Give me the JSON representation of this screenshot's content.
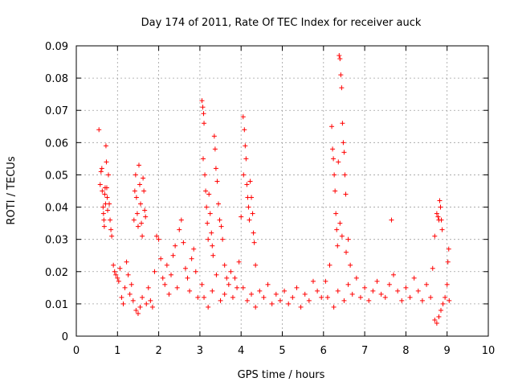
{
  "chart_data": {
    "type": "scatter",
    "title": "Day 174 of 2011, Rate Of TEC Index for receiver auck",
    "xlabel": "GPS time / hours",
    "ylabel": "ROTI / TECUs",
    "xlim": [
      0,
      10
    ],
    "ylim": [
      0,
      0.09
    ],
    "xticks": [
      "0",
      "1",
      "2",
      "3",
      "4",
      "5",
      "6",
      "7",
      "8",
      "9",
      "10"
    ],
    "yticks": [
      "0",
      "0.01",
      "0.02",
      "0.03",
      "0.04",
      "0.05",
      "0.06",
      "0.07",
      "0.08",
      "0.09"
    ],
    "grid": true,
    "marker": "+",
    "color": "#ff0000",
    "series": [
      {
        "name": "ROTI",
        "points": [
          [
            0.55,
            0.064
          ],
          [
            0.58,
            0.047
          ],
          [
            0.6,
            0.051
          ],
          [
            0.62,
            0.052
          ],
          [
            0.63,
            0.045
          ],
          [
            0.65,
            0.04
          ],
          [
            0.66,
            0.038
          ],
          [
            0.67,
            0.036
          ],
          [
            0.68,
            0.034
          ],
          [
            0.69,
            0.044
          ],
          [
            0.7,
            0.046
          ],
          [
            0.71,
            0.041
          ],
          [
            0.72,
            0.059
          ],
          [
            0.73,
            0.054
          ],
          [
            0.74,
            0.046
          ],
          [
            0.75,
            0.043
          ],
          [
            0.76,
            0.039
          ],
          [
            0.78,
            0.05
          ],
          [
            0.8,
            0.041
          ],
          [
            0.82,
            0.036
          ],
          [
            0.84,
            0.033
          ],
          [
            0.86,
            0.031
          ],
          [
            0.9,
            0.022
          ],
          [
            0.93,
            0.02
          ],
          [
            0.96,
            0.019
          ],
          [
            1.0,
            0.018
          ],
          [
            1.03,
            0.017
          ],
          [
            1.06,
            0.021
          ],
          [
            1.1,
            0.012
          ],
          [
            1.14,
            0.01
          ],
          [
            1.18,
            0.015
          ],
          [
            1.22,
            0.023
          ],
          [
            1.26,
            0.019
          ],
          [
            1.3,
            0.013
          ],
          [
            1.34,
            0.016
          ],
          [
            1.38,
            0.011
          ],
          [
            1.4,
            0.036
          ],
          [
            1.42,
            0.045
          ],
          [
            1.44,
            0.05
          ],
          [
            1.46,
            0.043
          ],
          [
            1.48,
            0.038
          ],
          [
            1.5,
            0.034
          ],
          [
            1.52,
            0.053
          ],
          [
            1.54,
            0.047
          ],
          [
            1.56,
            0.041
          ],
          [
            1.58,
            0.035
          ],
          [
            1.6,
            0.031
          ],
          [
            1.62,
            0.049
          ],
          [
            1.64,
            0.045
          ],
          [
            1.66,
            0.039
          ],
          [
            1.68,
            0.037
          ],
          [
            1.45,
            0.008
          ],
          [
            1.5,
            0.007
          ],
          [
            1.55,
            0.009
          ],
          [
            1.6,
            0.012
          ],
          [
            1.7,
            0.01
          ],
          [
            1.75,
            0.015
          ],
          [
            1.8,
            0.011
          ],
          [
            1.85,
            0.009
          ],
          [
            1.9,
            0.02
          ],
          [
            1.95,
            0.031
          ],
          [
            2.0,
            0.03
          ],
          [
            2.05,
            0.024
          ],
          [
            2.1,
            0.018
          ],
          [
            2.15,
            0.016
          ],
          [
            2.2,
            0.022
          ],
          [
            2.25,
            0.013
          ],
          [
            2.3,
            0.019
          ],
          [
            2.35,
            0.025
          ],
          [
            2.4,
            0.028
          ],
          [
            2.45,
            0.015
          ],
          [
            2.5,
            0.033
          ],
          [
            2.55,
            0.036
          ],
          [
            2.6,
            0.029
          ],
          [
            2.65,
            0.021
          ],
          [
            2.7,
            0.018
          ],
          [
            2.75,
            0.014
          ],
          [
            2.8,
            0.024
          ],
          [
            2.85,
            0.027
          ],
          [
            2.9,
            0.02
          ],
          [
            2.95,
            0.012
          ],
          [
            3.05,
            0.073
          ],
          [
            3.07,
            0.071
          ],
          [
            3.09,
            0.069
          ],
          [
            3.1,
            0.066
          ],
          [
            3.08,
            0.055
          ],
          [
            3.12,
            0.05
          ],
          [
            3.14,
            0.045
          ],
          [
            3.16,
            0.04
          ],
          [
            3.18,
            0.035
          ],
          [
            3.2,
            0.03
          ],
          [
            3.22,
            0.044
          ],
          [
            3.25,
            0.038
          ],
          [
            3.28,
            0.032
          ],
          [
            3.3,
            0.028
          ],
          [
            3.32,
            0.025
          ],
          [
            3.35,
            0.062
          ],
          [
            3.37,
            0.058
          ],
          [
            3.39,
            0.052
          ],
          [
            3.42,
            0.048
          ],
          [
            3.45,
            0.041
          ],
          [
            3.48,
            0.036
          ],
          [
            3.52,
            0.034
          ],
          [
            3.55,
            0.03
          ],
          [
            3.6,
            0.022
          ],
          [
            3.65,
            0.018
          ],
          [
            3.05,
            0.016
          ],
          [
            3.1,
            0.012
          ],
          [
            3.2,
            0.009
          ],
          [
            3.3,
            0.014
          ],
          [
            3.4,
            0.019
          ],
          [
            3.5,
            0.011
          ],
          [
            3.6,
            0.013
          ],
          [
            3.7,
            0.016
          ],
          [
            3.75,
            0.02
          ],
          [
            3.8,
            0.012
          ],
          [
            3.85,
            0.018
          ],
          [
            3.9,
            0.015
          ],
          [
            3.95,
            0.023
          ],
          [
            4.0,
            0.037
          ],
          [
            4.05,
            0.068
          ],
          [
            4.08,
            0.064
          ],
          [
            4.1,
            0.059
          ],
          [
            4.12,
            0.055
          ],
          [
            4.06,
            0.05
          ],
          [
            4.14,
            0.047
          ],
          [
            4.16,
            0.043
          ],
          [
            4.18,
            0.04
          ],
          [
            4.2,
            0.036
          ],
          [
            4.22,
            0.048
          ],
          [
            4.25,
            0.043
          ],
          [
            4.28,
            0.038
          ],
          [
            4.3,
            0.032
          ],
          [
            4.32,
            0.029
          ],
          [
            4.35,
            0.022
          ],
          [
            4.05,
            0.015
          ],
          [
            4.15,
            0.011
          ],
          [
            4.25,
            0.013
          ],
          [
            4.35,
            0.009
          ],
          [
            4.45,
            0.014
          ],
          [
            4.55,
            0.012
          ],
          [
            4.65,
            0.016
          ],
          [
            4.75,
            0.01
          ],
          [
            4.85,
            0.013
          ],
          [
            4.95,
            0.011
          ],
          [
            5.05,
            0.014
          ],
          [
            5.15,
            0.01
          ],
          [
            5.25,
            0.012
          ],
          [
            5.35,
            0.015
          ],
          [
            5.45,
            0.009
          ],
          [
            5.55,
            0.013
          ],
          [
            5.65,
            0.011
          ],
          [
            5.75,
            0.017
          ],
          [
            5.85,
            0.014
          ],
          [
            5.95,
            0.012
          ],
          [
            6.05,
            0.017
          ],
          [
            6.15,
            0.022
          ],
          [
            6.2,
            0.065
          ],
          [
            6.22,
            0.058
          ],
          [
            6.24,
            0.055
          ],
          [
            6.26,
            0.05
          ],
          [
            6.28,
            0.045
          ],
          [
            6.3,
            0.038
          ],
          [
            6.32,
            0.033
          ],
          [
            6.34,
            0.028
          ],
          [
            6.38,
            0.087
          ],
          [
            6.4,
            0.086
          ],
          [
            6.42,
            0.081
          ],
          [
            6.44,
            0.077
          ],
          [
            6.46,
            0.066
          ],
          [
            6.48,
            0.06
          ],
          [
            6.5,
            0.057
          ],
          [
            6.52,
            0.05
          ],
          [
            6.54,
            0.044
          ],
          [
            6.36,
            0.054
          ],
          [
            6.4,
            0.035
          ],
          [
            6.45,
            0.031
          ],
          [
            6.55,
            0.026
          ],
          [
            6.6,
            0.03
          ],
          [
            6.65,
            0.022
          ],
          [
            6.1,
            0.012
          ],
          [
            6.25,
            0.009
          ],
          [
            6.35,
            0.014
          ],
          [
            6.5,
            0.011
          ],
          [
            6.6,
            0.016
          ],
          [
            6.7,
            0.013
          ],
          [
            6.8,
            0.018
          ],
          [
            6.9,
            0.012
          ],
          [
            7.0,
            0.015
          ],
          [
            7.1,
            0.011
          ],
          [
            7.2,
            0.014
          ],
          [
            7.3,
            0.017
          ],
          [
            7.4,
            0.013
          ],
          [
            7.5,
            0.012
          ],
          [
            7.6,
            0.016
          ],
          [
            7.65,
            0.036
          ],
          [
            7.7,
            0.019
          ],
          [
            7.8,
            0.014
          ],
          [
            7.9,
            0.011
          ],
          [
            8.0,
            0.015
          ],
          [
            8.1,
            0.012
          ],
          [
            8.2,
            0.018
          ],
          [
            8.3,
            0.014
          ],
          [
            8.4,
            0.011
          ],
          [
            8.5,
            0.016
          ],
          [
            8.6,
            0.012
          ],
          [
            8.65,
            0.021
          ],
          [
            8.7,
            0.031
          ],
          [
            8.75,
            0.038
          ],
          [
            8.78,
            0.037
          ],
          [
            8.8,
            0.036
          ],
          [
            8.82,
            0.042
          ],
          [
            8.84,
            0.04
          ],
          [
            8.86,
            0.036
          ],
          [
            8.88,
            0.033
          ],
          [
            8.7,
            0.005
          ],
          [
            8.75,
            0.004
          ],
          [
            8.8,
            0.006
          ],
          [
            8.85,
            0.008
          ],
          [
            8.9,
            0.01
          ],
          [
            8.95,
            0.012
          ],
          [
            9.0,
            0.016
          ],
          [
            9.02,
            0.023
          ],
          [
            9.04,
            0.027
          ],
          [
            9.05,
            0.011
          ]
        ]
      }
    ]
  }
}
